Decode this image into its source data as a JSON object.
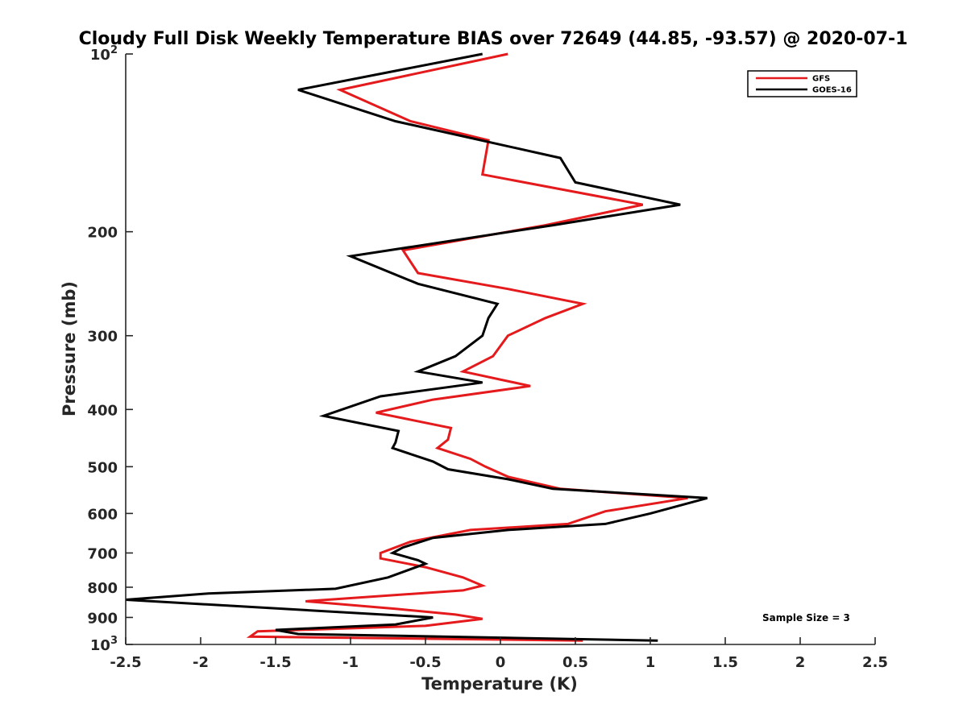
{
  "chart_data": {
    "type": "line",
    "title": "Cloudy Full Disk Weekly Temperature BIAS over 72649 (44.85, -93.57) @ 2020-07-1",
    "xlabel": "Temperature (K)",
    "ylabel": "Pressure (mb)",
    "xlim": [
      -2.5,
      2.5
    ],
    "ylim": [
      100,
      1000
    ],
    "yscale": "log",
    "y_reversed": true,
    "xticks": [
      "-2.5",
      "-2",
      "-1.5",
      "-1",
      "-0.5",
      "0",
      "0.5",
      "1",
      "1.5",
      "2",
      "2.5"
    ],
    "xtick_values": [
      -2.5,
      -2,
      -1.5,
      -1,
      -0.5,
      0,
      0.5,
      1,
      1.5,
      2,
      2.5
    ],
    "yticks": [
      {
        "value": 100,
        "base": "10",
        "exp": "2"
      },
      {
        "value": 200,
        "label": "200"
      },
      {
        "value": 300,
        "label": "300"
      },
      {
        "value": 400,
        "label": "400"
      },
      {
        "value": 500,
        "label": "500"
      },
      {
        "value": 600,
        "label": "600"
      },
      {
        "value": 700,
        "label": "700"
      },
      {
        "value": 800,
        "label": "800"
      },
      {
        "value": 900,
        "label": "900"
      },
      {
        "value": 1000,
        "base": "10",
        "exp": "3"
      }
    ],
    "legend_position": "top-right",
    "annotation": "Sample Size = 3",
    "series": [
      {
        "name": "GFS",
        "color": "#e41a1c",
        "points": [
          [
            0.05,
            100
          ],
          [
            -1.07,
            115
          ],
          [
            -0.6,
            130
          ],
          [
            -0.08,
            140
          ],
          [
            -0.12,
            160
          ],
          [
            0.95,
            180
          ],
          [
            0.3,
            195
          ],
          [
            -0.65,
            215
          ],
          [
            -0.55,
            235
          ],
          [
            0.05,
            250
          ],
          [
            0.55,
            265
          ],
          [
            0.3,
            280
          ],
          [
            0.05,
            300
          ],
          [
            -0.05,
            325
          ],
          [
            -0.25,
            345
          ],
          [
            0.2,
            365
          ],
          [
            -0.45,
            385
          ],
          [
            -0.83,
            405
          ],
          [
            -0.33,
            430
          ],
          [
            -0.35,
            450
          ],
          [
            -0.42,
            465
          ],
          [
            -0.2,
            485
          ],
          [
            -0.1,
            500
          ],
          [
            0.05,
            520
          ],
          [
            0.4,
            545
          ],
          [
            1.25,
            565
          ],
          [
            0.7,
            595
          ],
          [
            0.45,
            625
          ],
          [
            -0.2,
            640
          ],
          [
            -0.6,
            670
          ],
          [
            -0.8,
            700
          ],
          [
            -0.8,
            715
          ],
          [
            -0.5,
            740
          ],
          [
            -0.25,
            770
          ],
          [
            -0.12,
            795
          ],
          [
            -0.25,
            810
          ],
          [
            -1.3,
            845
          ],
          [
            -0.7,
            870
          ],
          [
            -0.3,
            890
          ],
          [
            -0.12,
            905
          ],
          [
            -0.5,
            930
          ],
          [
            -1.62,
            950
          ],
          [
            -1.67,
            970
          ],
          [
            0.55,
            985
          ]
        ]
      },
      {
        "name": "GOES-16",
        "color": "#000000",
        "points": [
          [
            -0.12,
            100
          ],
          [
            -1.35,
            115
          ],
          [
            -0.7,
            130
          ],
          [
            0.4,
            150
          ],
          [
            0.5,
            165
          ],
          [
            1.2,
            180
          ],
          [
            0.35,
            195
          ],
          [
            -1.0,
            220
          ],
          [
            -0.55,
            245
          ],
          [
            -0.02,
            265
          ],
          [
            -0.08,
            280
          ],
          [
            -0.12,
            300
          ],
          [
            -0.3,
            325
          ],
          [
            -0.55,
            345
          ],
          [
            -0.12,
            360
          ],
          [
            -0.8,
            380
          ],
          [
            -1.18,
            410
          ],
          [
            -0.68,
            435
          ],
          [
            -0.7,
            455
          ],
          [
            -0.72,
            465
          ],
          [
            -0.45,
            490
          ],
          [
            -0.35,
            505
          ],
          [
            0.05,
            525
          ],
          [
            0.35,
            545
          ],
          [
            1.38,
            565
          ],
          [
            1.0,
            600
          ],
          [
            0.7,
            625
          ],
          [
            0.05,
            640
          ],
          [
            -0.45,
            660
          ],
          [
            -0.65,
            685
          ],
          [
            -0.72,
            700
          ],
          [
            -0.55,
            720
          ],
          [
            -0.5,
            730
          ],
          [
            -0.75,
            770
          ],
          [
            -1.1,
            805
          ],
          [
            -1.95,
            820
          ],
          [
            -2.5,
            840
          ],
          [
            -0.45,
            900
          ],
          [
            -0.7,
            925
          ],
          [
            -1.5,
            945
          ],
          [
            -1.35,
            960
          ],
          [
            1.05,
            985
          ]
        ]
      }
    ]
  }
}
